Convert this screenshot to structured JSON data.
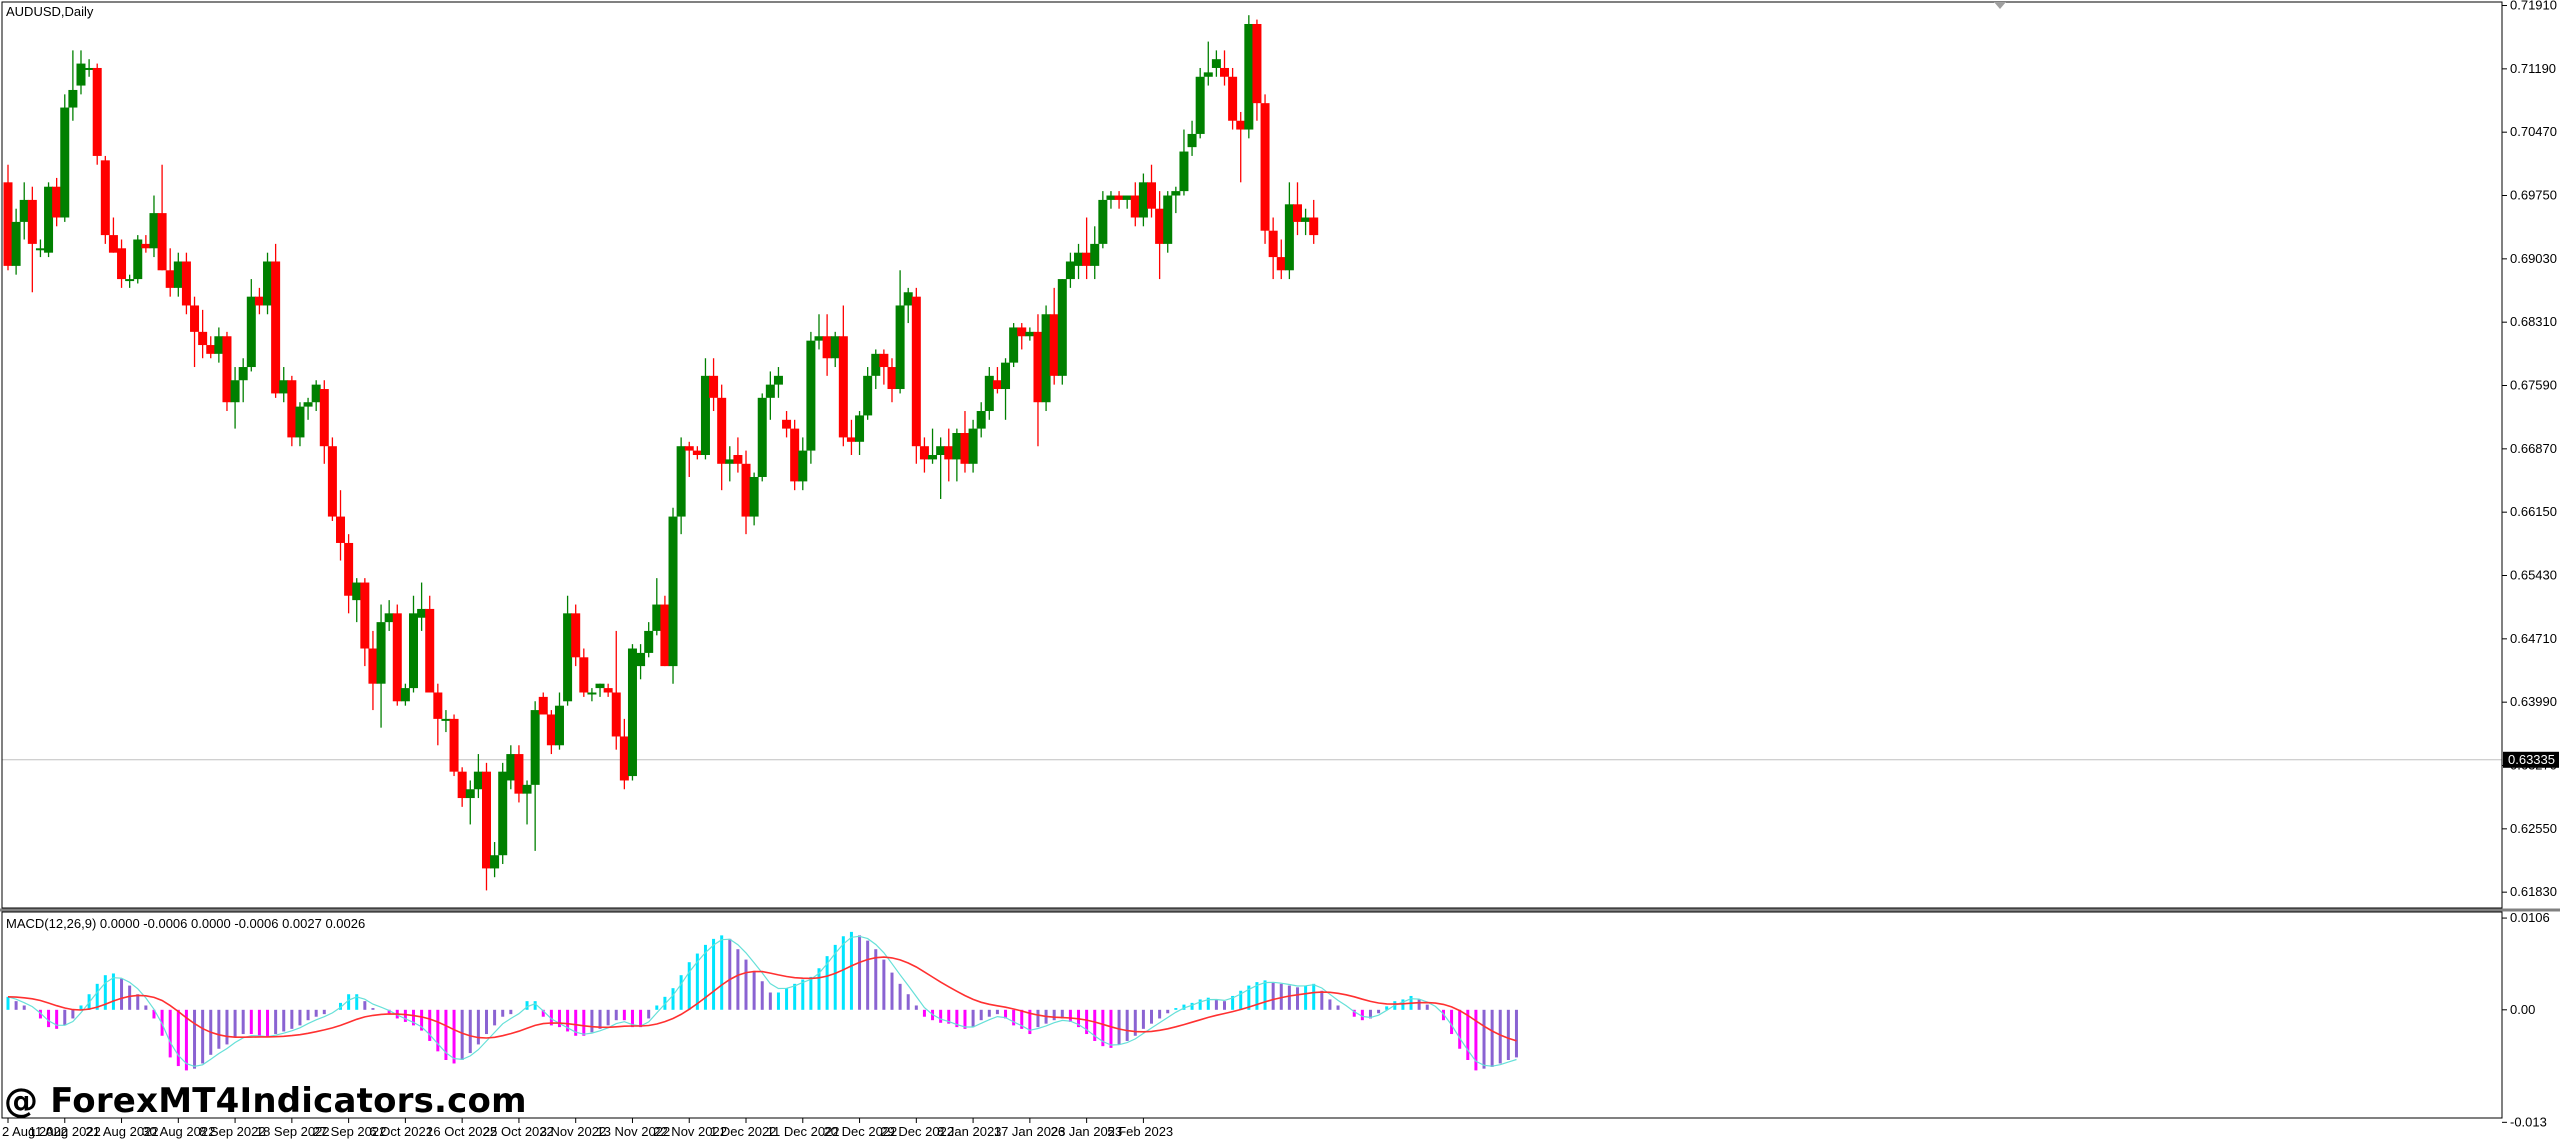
{
  "window": {
    "symbol_label": "AUDUSD,Daily",
    "current_price": "0.63335",
    "watermark": "@ ForexMT4Indicators.com"
  },
  "colors": {
    "bull": "#008000",
    "bear": "#ff0000",
    "price_line": "#c0c0c0",
    "hist_up": "#00e5ff",
    "hist_down": "#ff00ff",
    "hist_fade": "#8a63d2",
    "macd_line": "#66e0d8",
    "signal_line": "#ff3030"
  },
  "chart_data": [
    {
      "type": "candlestick",
      "title": "AUDUSD,Daily",
      "ylim": [
        0.6165,
        0.7195
      ],
      "y_ticks": [
        "0.71910",
        "0.71190",
        "0.70470",
        "0.69750",
        "0.69030",
        "0.68310",
        "0.67590",
        "0.66870",
        "0.66150",
        "0.65430",
        "0.64710",
        "0.63990",
        "0.63270",
        "0.62550",
        "0.61830"
      ],
      "x_ticks": [
        "2 Aug 2022",
        "11 Aug 2022",
        "21 Aug 2022",
        "30 Aug 2022",
        "8 Sep 2022",
        "18 Sep 2022",
        "27 Sep 2022",
        "6 Oct 2022",
        "16 Oct 2022",
        "25 Oct 2022",
        "3 Nov 2022",
        "13 Nov 2022",
        "22 Nov 2022",
        "1 Dec 2022",
        "11 Dec 2022",
        "20 Dec 2022",
        "29 Dec 2022",
        "8 Jan 2023",
        "17 Jan 2023",
        "26 Jan 2023",
        "5 Feb 2023"
      ],
      "current_price": 0.63335,
      "ohlc": [
        [
          0.699,
          0.701,
          0.689,
          0.6895
        ],
        [
          0.6895,
          0.696,
          0.6885,
          0.6945
        ],
        [
          0.6945,
          0.699,
          0.6925,
          0.697
        ],
        [
          0.697,
          0.6985,
          0.6865,
          0.692
        ],
        [
          0.6915,
          0.6925,
          0.6905,
          0.6915
        ],
        [
          0.691,
          0.699,
          0.6905,
          0.6985
        ],
        [
          0.6985,
          0.6995,
          0.694,
          0.695
        ],
        [
          0.695,
          0.709,
          0.6945,
          0.7075
        ],
        [
          0.7075,
          0.714,
          0.706,
          0.7095
        ],
        [
          0.71,
          0.714,
          0.709,
          0.7125
        ],
        [
          0.712,
          0.713,
          0.711,
          0.712
        ],
        [
          0.712,
          0.7125,
          0.701,
          0.702
        ],
        [
          0.7015,
          0.702,
          0.692,
          0.693
        ],
        [
          0.693,
          0.695,
          0.691,
          0.691
        ],
        [
          0.6915,
          0.6925,
          0.687,
          0.688
        ],
        [
          0.688,
          0.6885,
          0.687,
          0.688
        ],
        [
          0.688,
          0.693,
          0.6875,
          0.6925
        ],
        [
          0.692,
          0.693,
          0.691,
          0.6915
        ],
        [
          0.6915,
          0.6975,
          0.6905,
          0.6955
        ],
        [
          0.6955,
          0.701,
          0.689,
          0.689
        ],
        [
          0.689,
          0.6915,
          0.686,
          0.687
        ],
        [
          0.687,
          0.691,
          0.686,
          0.69
        ],
        [
          0.69,
          0.691,
          0.684,
          0.685
        ],
        [
          0.685,
          0.686,
          0.678,
          0.682
        ],
        [
          0.682,
          0.6845,
          0.679,
          0.6805
        ],
        [
          0.6805,
          0.6815,
          0.679,
          0.6795
        ],
        [
          0.6795,
          0.6825,
          0.6785,
          0.6815
        ],
        [
          0.6815,
          0.682,
          0.673,
          0.674
        ],
        [
          0.674,
          0.678,
          0.671,
          0.6765
        ],
        [
          0.6765,
          0.679,
          0.674,
          0.678
        ],
        [
          0.678,
          0.688,
          0.6775,
          0.686
        ],
        [
          0.686,
          0.687,
          0.684,
          0.685
        ],
        [
          0.685,
          0.691,
          0.684,
          0.69
        ],
        [
          0.69,
          0.692,
          0.6745,
          0.675
        ],
        [
          0.675,
          0.678,
          0.674,
          0.6765
        ],
        [
          0.6765,
          0.677,
          0.669,
          0.67
        ],
        [
          0.67,
          0.674,
          0.669,
          0.6735
        ],
        [
          0.6735,
          0.6745,
          0.672,
          0.674
        ],
        [
          0.674,
          0.6765,
          0.673,
          0.676
        ],
        [
          0.6755,
          0.6765,
          0.667,
          0.669
        ],
        [
          0.669,
          0.67,
          0.6605,
          0.661
        ],
        [
          0.661,
          0.664,
          0.656,
          0.658
        ],
        [
          0.658,
          0.659,
          0.65,
          0.652
        ],
        [
          0.6515,
          0.654,
          0.649,
          0.6535
        ],
        [
          0.6535,
          0.654,
          0.644,
          0.646
        ],
        [
          0.646,
          0.648,
          0.639,
          0.642
        ],
        [
          0.642,
          0.651,
          0.637,
          0.649
        ],
        [
          0.649,
          0.6515,
          0.648,
          0.65
        ],
        [
          0.65,
          0.651,
          0.6395,
          0.64
        ],
        [
          0.64,
          0.642,
          0.6395,
          0.6415
        ],
        [
          0.6415,
          0.652,
          0.641,
          0.65
        ],
        [
          0.6495,
          0.6535,
          0.648,
          0.6505
        ],
        [
          0.6505,
          0.652,
          0.641,
          0.641
        ],
        [
          0.641,
          0.642,
          0.635,
          0.638
        ],
        [
          0.638,
          0.639,
          0.6365,
          0.638
        ],
        [
          0.638,
          0.6385,
          0.6315,
          0.632
        ],
        [
          0.632,
          0.6325,
          0.628,
          0.629
        ],
        [
          0.629,
          0.631,
          0.626,
          0.63
        ],
        [
          0.63,
          0.634,
          0.629,
          0.632
        ],
        [
          0.632,
          0.633,
          0.6185,
          0.621
        ],
        [
          0.621,
          0.624,
          0.62,
          0.6225
        ],
        [
          0.6225,
          0.633,
          0.6215,
          0.632
        ],
        [
          0.631,
          0.635,
          0.63,
          0.634
        ],
        [
          0.634,
          0.635,
          0.6285,
          0.6295
        ],
        [
          0.6295,
          0.631,
          0.626,
          0.6305
        ],
        [
          0.6305,
          0.64,
          0.623,
          0.639
        ],
        [
          0.6405,
          0.641,
          0.6385,
          0.6385
        ],
        [
          0.6385,
          0.639,
          0.634,
          0.635
        ],
        [
          0.635,
          0.641,
          0.6345,
          0.6395
        ],
        [
          0.64,
          0.652,
          0.6395,
          0.65
        ],
        [
          0.65,
          0.651,
          0.644,
          0.645
        ],
        [
          0.645,
          0.646,
          0.6405,
          0.641
        ],
        [
          0.641,
          0.6415,
          0.64,
          0.641
        ],
        [
          0.6415,
          0.642,
          0.6405,
          0.642
        ],
        [
          0.6415,
          0.642,
          0.6405,
          0.641
        ],
        [
          0.641,
          0.648,
          0.6345,
          0.636
        ],
        [
          0.636,
          0.638,
          0.63,
          0.631
        ],
        [
          0.6315,
          0.6465,
          0.631,
          0.646
        ],
        [
          0.644,
          0.6465,
          0.6425,
          0.6455
        ],
        [
          0.6455,
          0.649,
          0.645,
          0.648
        ],
        [
          0.648,
          0.654,
          0.6475,
          0.651
        ],
        [
          0.651,
          0.652,
          0.644,
          0.644
        ],
        [
          0.644,
          0.662,
          0.642,
          0.661
        ],
        [
          0.661,
          0.67,
          0.659,
          0.669
        ],
        [
          0.669,
          0.6695,
          0.6655,
          0.6685
        ],
        [
          0.6685,
          0.669,
          0.6675,
          0.668
        ],
        [
          0.668,
          0.679,
          0.6675,
          0.677
        ],
        [
          0.677,
          0.679,
          0.673,
          0.6745
        ],
        [
          0.6745,
          0.676,
          0.664,
          0.667
        ],
        [
          0.667,
          0.669,
          0.665,
          0.6675
        ],
        [
          0.668,
          0.67,
          0.666,
          0.667
        ],
        [
          0.667,
          0.6685,
          0.659,
          0.661
        ],
        [
          0.661,
          0.666,
          0.66,
          0.6655
        ],
        [
          0.6655,
          0.675,
          0.665,
          0.6745
        ],
        [
          0.6745,
          0.6775,
          0.672,
          0.676
        ],
        [
          0.676,
          0.678,
          0.6745,
          0.677
        ],
        [
          0.672,
          0.673,
          0.67,
          0.671
        ],
        [
          0.671,
          0.672,
          0.664,
          0.665
        ],
        [
          0.665,
          0.67,
          0.664,
          0.6685
        ],
        [
          0.6685,
          0.682,
          0.667,
          0.681
        ],
        [
          0.681,
          0.684,
          0.68,
          0.6815
        ],
        [
          0.6815,
          0.684,
          0.677,
          0.679
        ],
        [
          0.679,
          0.682,
          0.678,
          0.6815
        ],
        [
          0.6815,
          0.685,
          0.669,
          0.67
        ],
        [
          0.67,
          0.672,
          0.668,
          0.6695
        ],
        [
          0.6695,
          0.673,
          0.668,
          0.6725
        ],
        [
          0.6725,
          0.678,
          0.672,
          0.677
        ],
        [
          0.677,
          0.68,
          0.6755,
          0.6795
        ],
        [
          0.6795,
          0.68,
          0.676,
          0.678
        ],
        [
          0.678,
          0.679,
          0.674,
          0.6755
        ],
        [
          0.6755,
          0.689,
          0.675,
          0.685
        ],
        [
          0.685,
          0.687,
          0.683,
          0.6865
        ],
        [
          0.686,
          0.687,
          0.667,
          0.669
        ],
        [
          0.669,
          0.67,
          0.666,
          0.6675
        ],
        [
          0.6675,
          0.671,
          0.667,
          0.668
        ],
        [
          0.668,
          0.67,
          0.663,
          0.669
        ],
        [
          0.669,
          0.671,
          0.665,
          0.6675
        ],
        [
          0.6675,
          0.671,
          0.665,
          0.6705
        ],
        [
          0.6705,
          0.673,
          0.666,
          0.667
        ],
        [
          0.667,
          0.672,
          0.666,
          0.671
        ],
        [
          0.671,
          0.674,
          0.67,
          0.673
        ],
        [
          0.673,
          0.678,
          0.672,
          0.677
        ],
        [
          0.6765,
          0.678,
          0.675,
          0.6755
        ],
        [
          0.6755,
          0.679,
          0.672,
          0.6785
        ],
        [
          0.6785,
          0.683,
          0.678,
          0.6825
        ],
        [
          0.6825,
          0.683,
          0.68,
          0.6815
        ],
        [
          0.6815,
          0.6825,
          0.681,
          0.682
        ],
        [
          0.682,
          0.684,
          0.669,
          0.674
        ],
        [
          0.674,
          0.685,
          0.673,
          0.684
        ],
        [
          0.684,
          0.687,
          0.676,
          0.677
        ],
        [
          0.677,
          0.688,
          0.676,
          0.688
        ],
        [
          0.688,
          0.691,
          0.687,
          0.69
        ],
        [
          0.6895,
          0.692,
          0.688,
          0.691
        ],
        [
          0.691,
          0.695,
          0.688,
          0.6895
        ],
        [
          0.6895,
          0.694,
          0.688,
          0.692
        ],
        [
          0.692,
          0.698,
          0.6915,
          0.697
        ],
        [
          0.697,
          0.698,
          0.696,
          0.6975
        ],
        [
          0.6975,
          0.698,
          0.696,
          0.697
        ],
        [
          0.697,
          0.6975,
          0.696,
          0.6975
        ],
        [
          0.6975,
          0.699,
          0.694,
          0.695
        ],
        [
          0.695,
          0.7,
          0.694,
          0.699
        ],
        [
          0.699,
          0.701,
          0.695,
          0.696
        ],
        [
          0.696,
          0.698,
          0.688,
          0.692
        ],
        [
          0.692,
          0.698,
          0.691,
          0.6975
        ],
        [
          0.6975,
          0.6985,
          0.6955,
          0.698
        ],
        [
          0.698,
          0.705,
          0.6975,
          0.7025
        ],
        [
          0.703,
          0.706,
          0.702,
          0.7045
        ],
        [
          0.7045,
          0.712,
          0.704,
          0.711
        ],
        [
          0.711,
          0.715,
          0.71,
          0.7115
        ],
        [
          0.712,
          0.714,
          0.711,
          0.713
        ],
        [
          0.712,
          0.714,
          0.71,
          0.711
        ],
        [
          0.711,
          0.712,
          0.705,
          0.706
        ],
        [
          0.706,
          0.707,
          0.699,
          0.705
        ],
        [
          0.705,
          0.718,
          0.704,
          0.717
        ],
        [
          0.717,
          0.7175,
          0.706,
          0.708
        ],
        [
          0.708,
          0.709,
          0.692,
          0.6935
        ],
        [
          0.6935,
          0.695,
          0.688,
          0.6905
        ],
        [
          0.6905,
          0.6925,
          0.688,
          0.689
        ],
        [
          0.689,
          0.699,
          0.688,
          0.6965
        ],
        [
          0.6965,
          0.699,
          0.693,
          0.6945
        ],
        [
          0.6945,
          0.696,
          0.693,
          0.695
        ],
        [
          0.695,
          0.697,
          0.692,
          0.693
        ]
      ]
    },
    {
      "type": "bar",
      "title": "MACD(12,26,9) 0.0000 -0.0006 0.0000 -0.0006 0.0027 0.0026",
      "ylim": [
        -0.0125,
        0.0113
      ],
      "y_ticks": [
        "0.0106",
        "0.00",
        "-0.013"
      ],
      "series": [
        {
          "name": "",
          "values": [
            0.0015,
            0.001,
            0.0005,
            0.0,
            -0.001,
            -0.002,
            -0.0022,
            -0.0018,
            -0.001,
            0.0005,
            0.0018,
            0.003,
            0.004,
            0.0042,
            0.0036,
            0.0028,
            0.0018,
            0.0005,
            -0.001,
            -0.003,
            -0.0055,
            -0.0065,
            -0.007,
            -0.0068,
            -0.0062,
            -0.0052,
            -0.0045,
            -0.004,
            -0.0032,
            -0.0028,
            -0.0028,
            -0.003,
            -0.0032,
            -0.0028,
            -0.0025,
            -0.0022,
            -0.0018,
            -0.0012,
            -0.0008,
            -0.0005,
            0.0,
            0.0008,
            0.0018,
            0.0018,
            0.001,
            0.0002,
            0.0,
            -0.0004,
            -0.001,
            -0.0014,
            -0.0018,
            -0.0024,
            -0.0036,
            -0.0048,
            -0.0058,
            -0.0062,
            -0.0058,
            -0.005,
            -0.004,
            -0.0028,
            -0.0018,
            -0.0008,
            -0.0005,
            0.0,
            0.001,
            0.001,
            -0.0008,
            -0.0018,
            -0.002,
            -0.0025,
            -0.003,
            -0.003,
            -0.0026,
            -0.0022,
            -0.0018,
            -0.0012,
            -0.0012,
            -0.002,
            -0.002,
            -0.001,
            0.0005,
            0.0015,
            0.0025,
            0.004,
            0.0055,
            0.0065,
            0.0075,
            0.0082,
            0.0086,
            0.0082,
            0.007,
            0.0058,
            0.0045,
            0.0033,
            0.002,
            0.002,
            0.0025,
            0.003,
            0.0035,
            0.0038,
            0.0048,
            0.0062,
            0.0075,
            0.0085,
            0.009,
            0.0086,
            0.008,
            0.007,
            0.0058,
            0.0043,
            0.003,
            0.0018,
            0.0005,
            -0.0008,
            -0.0012,
            -0.0015,
            -0.0016,
            -0.002,
            -0.0022,
            -0.002,
            -0.0012,
            -0.0008,
            -0.0005,
            -0.001,
            -0.0018,
            -0.0022,
            -0.0028,
            -0.002,
            -0.0016,
            -0.0012,
            -0.001,
            -0.0014,
            -0.002,
            -0.0028,
            -0.0036,
            -0.0042,
            -0.0044,
            -0.004,
            -0.0036,
            -0.003,
            -0.0022,
            -0.0016,
            -0.001,
            -0.0004,
            0.0002,
            0.0006,
            0.0008,
            0.0012,
            0.0014,
            0.0012,
            0.001,
            0.0016,
            0.0022,
            0.0028,
            0.0032,
            0.0034,
            0.0032,
            0.003,
            0.0028,
            0.0026,
            0.0028,
            0.003,
            0.0022,
            0.0012,
            0.0005,
            0.0,
            -0.0008,
            -0.0012,
            -0.001,
            -0.0004,
            0.0004,
            0.001,
            0.0012,
            0.0016,
            0.0012,
            0.0006,
            0.0,
            -0.0012,
            -0.0028,
            -0.0045,
            -0.0058,
            -0.007,
            -0.0068,
            -0.0066,
            -0.0062,
            -0.0058,
            -0.0055
          ]
        }
      ]
    }
  ]
}
